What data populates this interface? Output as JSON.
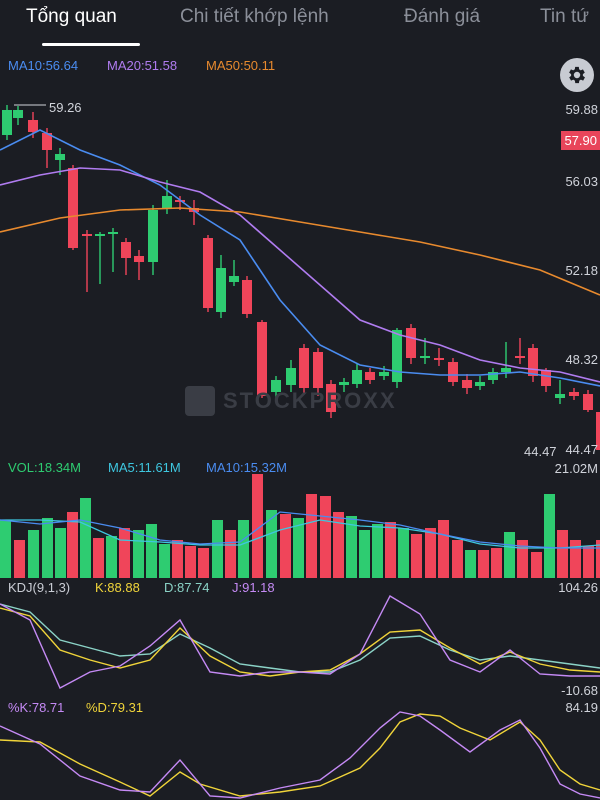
{
  "tabs": [
    {
      "label": "Tổng quan",
      "active": true
    },
    {
      "label": "Chi tiết khớp lệnh",
      "active": false
    },
    {
      "label": "Đánh giá",
      "active": false
    },
    {
      "label": "Tin tứ",
      "active": false
    }
  ],
  "price_chart": {
    "ma10": {
      "label": "MA10:56.64",
      "color": "#4a8cf0"
    },
    "ma20": {
      "label": "MA20:51.58",
      "color": "#b07cf0"
    },
    "ma50": {
      "label": "MA50:50.11",
      "color": "#e88a2e"
    },
    "axis": [
      "59.88",
      "56.03",
      "52.18",
      "48.32",
      "44.47"
    ],
    "current_price": "57.90",
    "high_marker": "59.26",
    "low_marker": "44.47",
    "up_color": "#2ecc71",
    "down_color": "#f0455a"
  },
  "volume_chart": {
    "vol": {
      "label": "VOL:18.34M",
      "color": "#2ecc71"
    },
    "ma5": {
      "label": "MA5:11.61M",
      "color": "#3ec7e0"
    },
    "ma10": {
      "label": "MA10:15.32M",
      "color": "#4a8cf0"
    },
    "axis_max": "21.02M"
  },
  "kdj_chart": {
    "title": "KDJ(9,1,3)",
    "k": {
      "label": "K:88.88",
      "color": "#f0d43a"
    },
    "d": {
      "label": "D:87.74",
      "color": "#8bd3c7"
    },
    "j": {
      "label": "J:91.18",
      "color": "#c58af5"
    },
    "axis_max": "104.26",
    "axis_min": "-10.68"
  },
  "stoch_chart": {
    "k": {
      "label": "%K:78.71",
      "color": "#c58af5"
    },
    "d": {
      "label": "%D:79.31",
      "color": "#f0d43a"
    },
    "axis_max": "84.19"
  },
  "watermark": "STOCKPROXX",
  "icons": {
    "settings": "gear-icon"
  }
}
